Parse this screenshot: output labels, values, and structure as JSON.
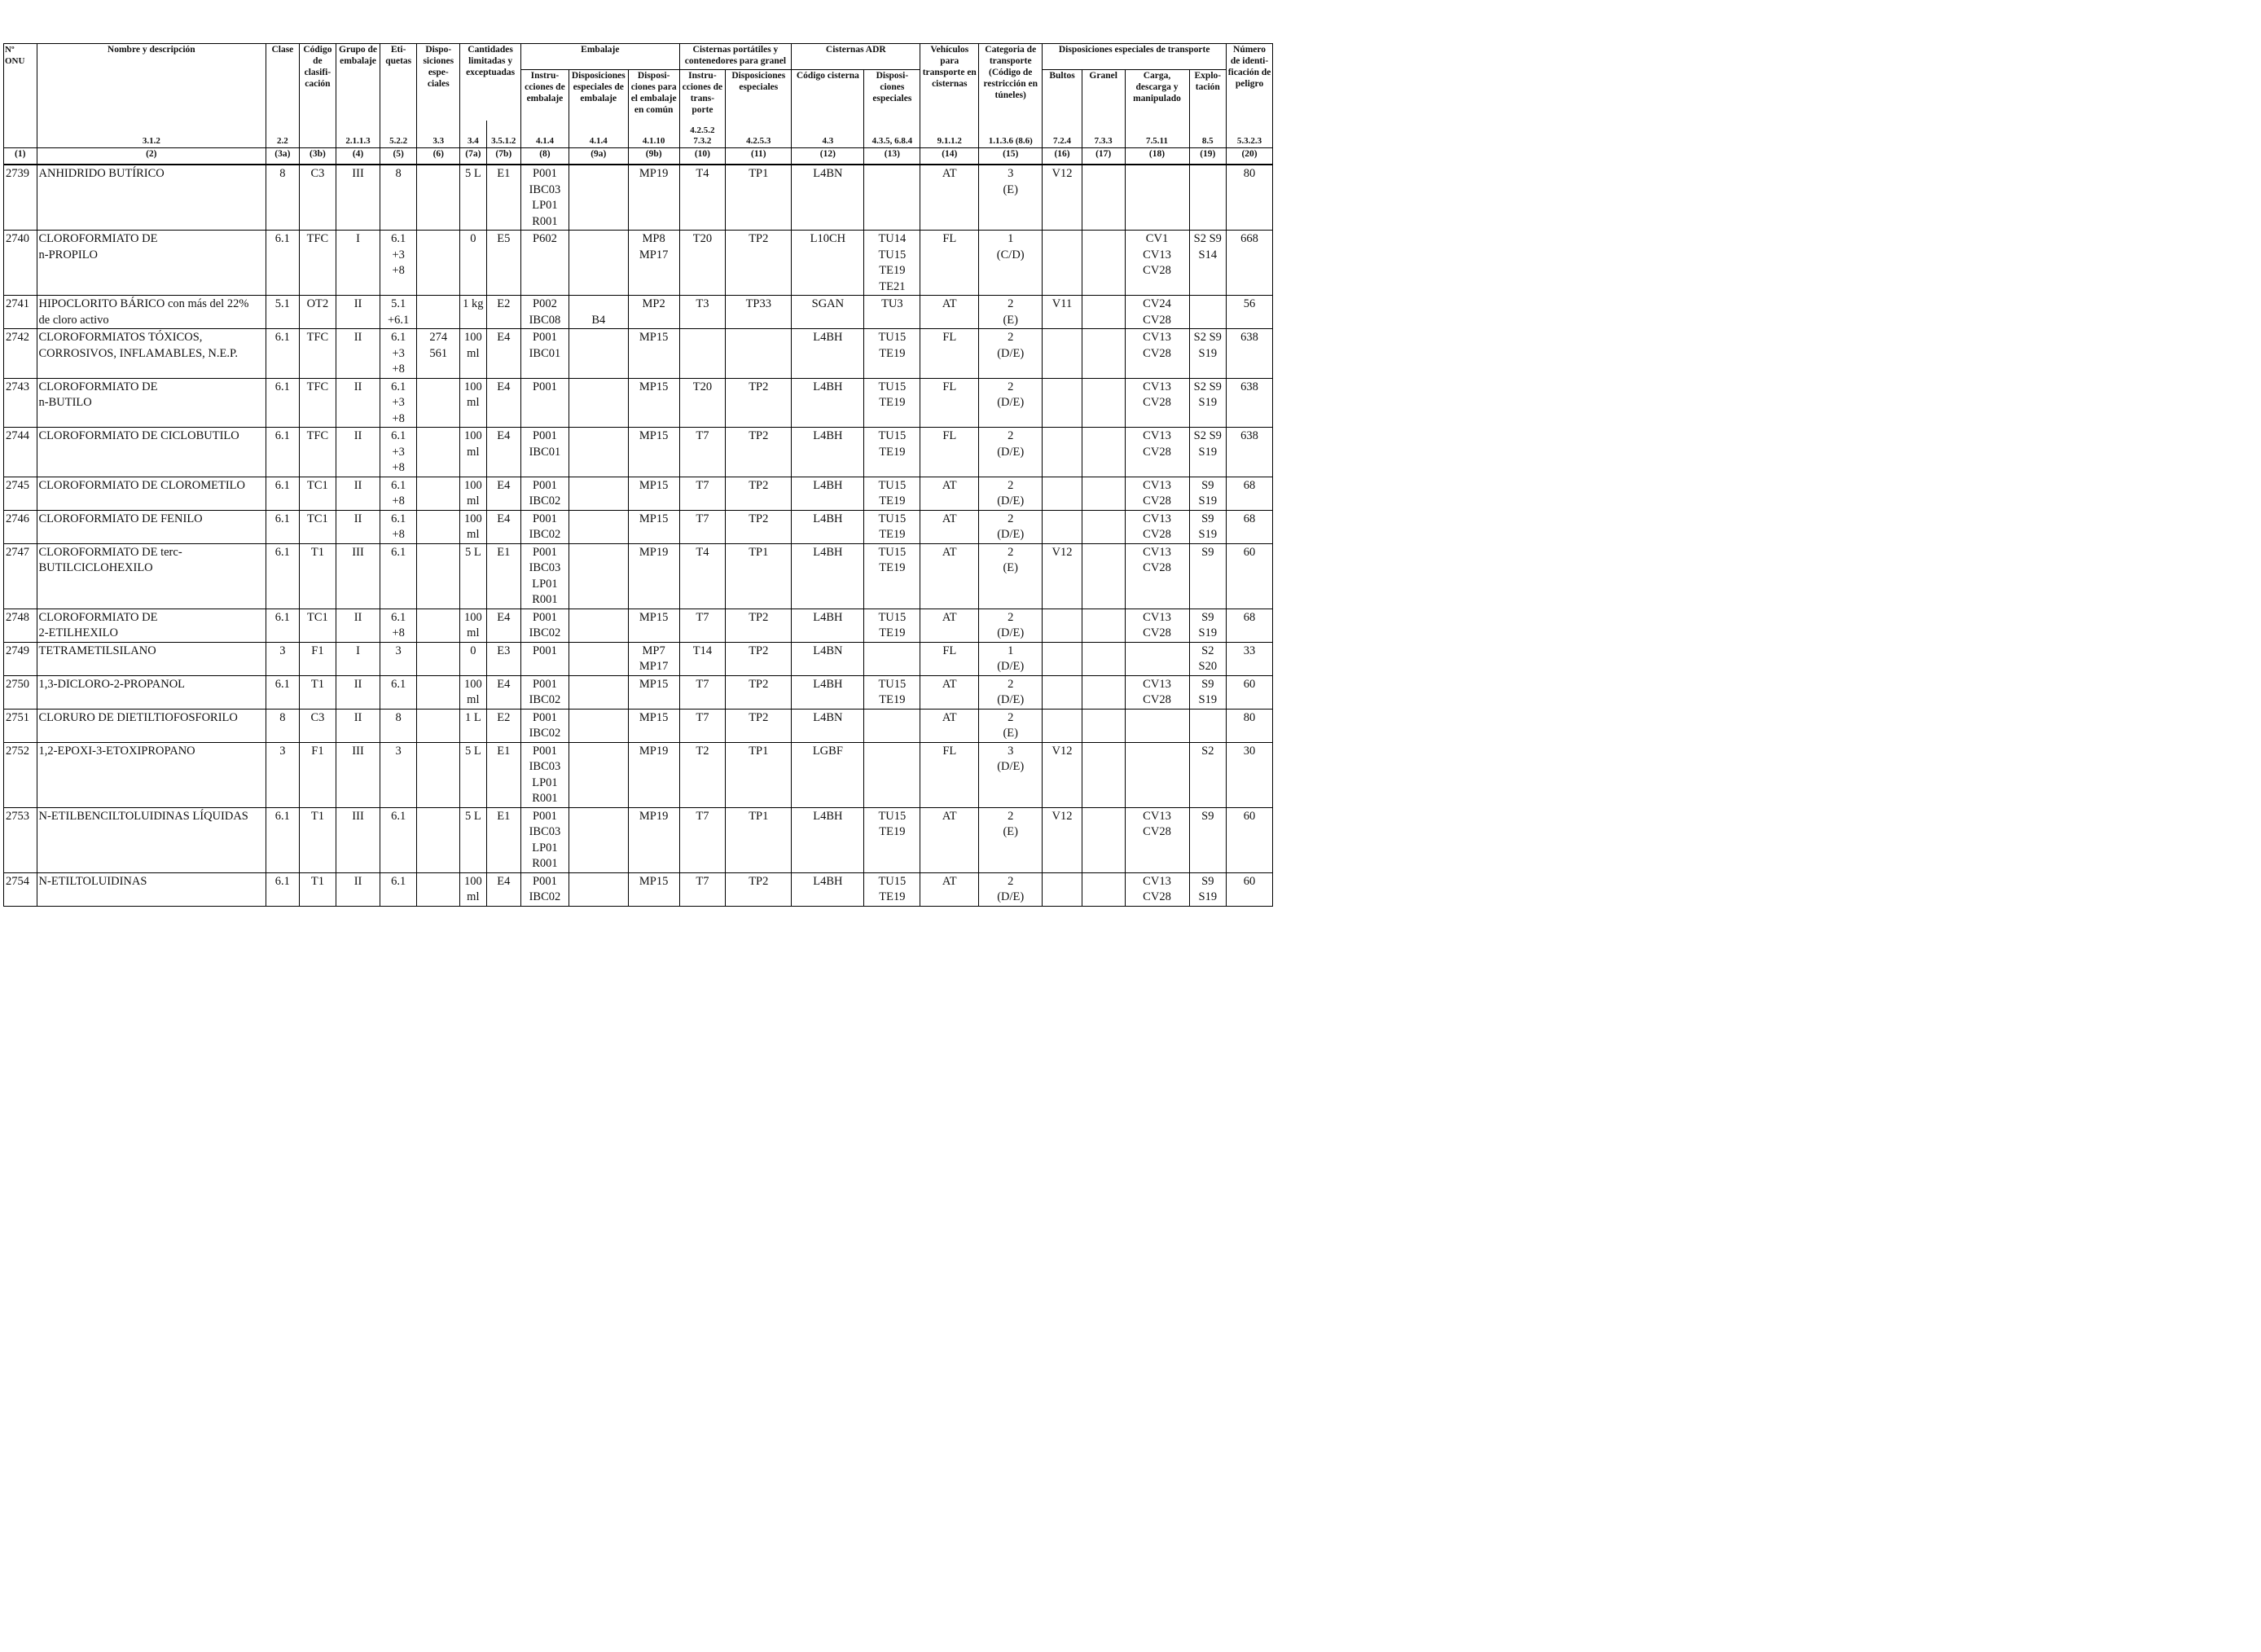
{
  "header": {
    "un": "Nº ONU",
    "name": "Nombre y descripción",
    "name_ref": "3.1.2",
    "clase": "Clase",
    "clase_ref": "2.2",
    "codigo": "Código de clasifi-cación",
    "grupo": "Grupo de embalaje",
    "grupo_ref": "2.1.1.3",
    "etiquetas": "Eti-quetas",
    "etiquetas_ref": "5.2.2",
    "disp": "Dispo-siciones espe-ciales",
    "disp_ref": "3.3",
    "cantidades": "Cantidades limitadas y exceptuadas",
    "cant_ref_a": "3.4",
    "cant_ref_b": "3.5.1.2",
    "embalaje": "Embalaje",
    "emb_instr": "Instru-cciones de embalaje",
    "emb_instr_ref": "4.1.4",
    "emb_disp": "Disposiciones especiales de embalaje",
    "emb_disp_ref": "4.1.4",
    "emb_comun": "Disposi-ciones para el embalaje en común",
    "emb_comun_ref": "4.1.10",
    "cisternas_port": "Cisternas portátiles y contenedores para granel",
    "cp_instr": "Instru-cciones de trans-porte",
    "cp_instr_ref": "4.2.5.2 7.3.2",
    "cp_disp": "Disposiciones especiales",
    "cp_disp_ref": "4.2.5.3",
    "cisternas_adr": "Cisternas ADR",
    "adr_codigo": "Código cisterna",
    "adr_codigo_ref": "4.3",
    "adr_disp": "Disposi-ciones especiales",
    "adr_disp_ref": "4.3.5, 6.8.4",
    "vehiculos": "Vehículos para transporte en cisternas",
    "vehiculos_ref": "9.1.1.2",
    "categoria": "Categoria de transporte (Código de restricción en túneles)",
    "categoria_ref": "1.1.3.6 (8.6)",
    "disp_transporte": "Disposiciones especiales de transporte",
    "dt_bultos": "Bultos",
    "dt_bultos_ref": "7.2.4",
    "dt_granel": "Granel",
    "dt_granel_ref": "7.3.3",
    "dt_carga": "Carga, descarga y manipulado",
    "dt_carga_ref": "7.5.11",
    "dt_explo": "Explo-tación",
    "dt_explo_ref": "8.5",
    "numero": "Número de identi-ficación de peligro",
    "numero_ref": "5.3.2.3"
  },
  "col_numbers": [
    "(1)",
    "(2)",
    "(3a)",
    "(3b)",
    "(4)",
    "(5)",
    "(6)",
    "(7a)",
    "(7b)",
    "(8)",
    "(9a)",
    "(9b)",
    "(10)",
    "(11)",
    "(12)",
    "(13)",
    "(14)",
    "(15)",
    "(16)",
    "(17)",
    "(18)",
    "(19)",
    "(20)"
  ],
  "rows": [
    {
      "un": "2739",
      "name": "ANHIDRIDO BUTÍRICO",
      "clase": "8",
      "codigo": "C3",
      "grupo": "III",
      "etiq": "8",
      "disp": "",
      "cant_a": "5 L",
      "cant_b": "E1",
      "emb_instr": "P001\nIBC03\nLP01\nR001",
      "emb_disp": "",
      "emb_comun": "MP19",
      "cp_instr": "T4",
      "cp_disp": "TP1",
      "adr_cod": "L4BN",
      "adr_disp": "",
      "veh": "AT",
      "cat": "3\n(E)",
      "bultos": "V12",
      "granel": "",
      "carga": "",
      "explo": "",
      "numero": "80"
    },
    {
      "un": "2740",
      "name": "CLOROFORMIATO DE\nn-PROPILO",
      "clase": "6.1",
      "codigo": "TFC",
      "grupo": "I",
      "etiq": "6.1\n+3\n+8",
      "disp": "",
      "cant_a": "0",
      "cant_b": "E5",
      "emb_instr": "P602",
      "emb_disp": "",
      "emb_comun": "MP8\nMP17",
      "cp_instr": "T20",
      "cp_disp": "TP2",
      "adr_cod": "L10CH",
      "adr_disp": "TU14\nTU15\nTE19\nTE21",
      "veh": "FL",
      "cat": "1\n(C/D)",
      "bultos": "",
      "granel": "",
      "carga": "CV1\nCV13\nCV28",
      "explo": "S2 S9\nS14",
      "numero": "668"
    },
    {
      "un": "2741",
      "name": "HIPOCLORITO BÁRICO con más del 22%\nde cloro activo",
      "clase": "5.1",
      "codigo": "OT2",
      "grupo": "II",
      "etiq": "5.1\n+6.1",
      "disp": "",
      "cant_a": "1 kg",
      "cant_b": "E2",
      "emb_instr": "P002\nIBC08",
      "emb_disp": "\nB4",
      "emb_comun": "MP2",
      "cp_instr": "T3",
      "cp_disp": "TP33",
      "adr_cod": "SGAN",
      "adr_disp": "TU3",
      "veh": "AT",
      "cat": "2\n(E)",
      "bultos": "V11",
      "granel": "",
      "carga": "CV24\nCV28",
      "explo": "",
      "numero": "56"
    },
    {
      "un": "2742",
      "name": "CLOROFORMIATOS TÓXICOS,\nCORROSIVOS, INFLAMABLES, N.E.P.",
      "clase": "6.1",
      "codigo": "TFC",
      "grupo": "II",
      "etiq": "6.1\n+3\n+8",
      "disp": "274\n561",
      "cant_a": "100\nml",
      "cant_b": "E4",
      "emb_instr": "P001\nIBC01",
      "emb_disp": "",
      "emb_comun": "MP15",
      "cp_instr": "",
      "cp_disp": "",
      "adr_cod": "L4BH",
      "adr_disp": "TU15\nTE19",
      "veh": "FL",
      "cat": "2\n(D/E)",
      "bultos": "",
      "granel": "",
      "carga": "CV13\nCV28",
      "explo": "S2 S9\nS19",
      "numero": "638"
    },
    {
      "un": "2743",
      "name": "CLOROFORMIATO DE\nn-BUTILO",
      "clase": "6.1",
      "codigo": "TFC",
      "grupo": "II",
      "etiq": "6.1\n+3\n+8",
      "disp": "",
      "cant_a": "100\nml",
      "cant_b": "E4",
      "emb_instr": "P001",
      "emb_disp": "",
      "emb_comun": "MP15",
      "cp_instr": "T20",
      "cp_disp": "TP2",
      "adr_cod": "L4BH",
      "adr_disp": "TU15\nTE19",
      "veh": "FL",
      "cat": "2\n(D/E)",
      "bultos": "",
      "granel": "",
      "carga": "CV13\nCV28",
      "explo": "S2 S9\nS19",
      "numero": "638"
    },
    {
      "un": "2744",
      "name": "CLOROFORMIATO DE CICLOBUTILO",
      "clase": "6.1",
      "codigo": "TFC",
      "grupo": "II",
      "etiq": "6.1\n+3\n+8",
      "disp": "",
      "cant_a": "100\nml",
      "cant_b": "E4",
      "emb_instr": "P001\nIBC01",
      "emb_disp": "",
      "emb_comun": "MP15",
      "cp_instr": "T7",
      "cp_disp": "TP2",
      "adr_cod": "L4BH",
      "adr_disp": "TU15\nTE19",
      "veh": "FL",
      "cat": "2\n(D/E)",
      "bultos": "",
      "granel": "",
      "carga": "CV13\nCV28",
      "explo": "S2 S9\nS19",
      "numero": "638"
    },
    {
      "un": "2745",
      "name": "CLOROFORMIATO DE CLOROMETILO",
      "clase": "6.1",
      "codigo": "TC1",
      "grupo": "II",
      "etiq": "6.1\n+8",
      "disp": "",
      "cant_a": "100\nml",
      "cant_b": "E4",
      "emb_instr": "P001\nIBC02",
      "emb_disp": "",
      "emb_comun": "MP15",
      "cp_instr": "T7",
      "cp_disp": "TP2",
      "adr_cod": "L4BH",
      "adr_disp": "TU15\nTE19",
      "veh": "AT",
      "cat": "2\n(D/E)",
      "bultos": "",
      "granel": "",
      "carga": "CV13\nCV28",
      "explo": "S9\nS19",
      "numero": "68"
    },
    {
      "un": "2746",
      "name": "CLOROFORMIATO DE FENILO",
      "clase": "6.1",
      "codigo": "TC1",
      "grupo": "II",
      "etiq": "6.1\n+8",
      "disp": "",
      "cant_a": "100\nml",
      "cant_b": "E4",
      "emb_instr": "P001\nIBC02",
      "emb_disp": "",
      "emb_comun": "MP15",
      "cp_instr": "T7",
      "cp_disp": "TP2",
      "adr_cod": "L4BH",
      "adr_disp": "TU15\nTE19",
      "veh": "AT",
      "cat": "2\n(D/E)",
      "bultos": "",
      "granel": "",
      "carga": "CV13\nCV28",
      "explo": "S9\nS19",
      "numero": "68"
    },
    {
      "un": "2747",
      "name": "CLOROFORMIATO DE terc-\nBUTILCICLOHEXILO",
      "clase": "6.1",
      "codigo": "T1",
      "grupo": "III",
      "etiq": "6.1",
      "disp": "",
      "cant_a": "5 L",
      "cant_b": "E1",
      "emb_instr": "P001\nIBC03\nLP01\nR001",
      "emb_disp": "",
      "emb_comun": "MP19",
      "cp_instr": "T4",
      "cp_disp": "TP1",
      "adr_cod": "L4BH",
      "adr_disp": "TU15\nTE19",
      "veh": "AT",
      "cat": "2\n(E)",
      "bultos": "V12",
      "granel": "",
      "carga": "CV13\nCV28",
      "explo": "S9",
      "numero": "60"
    },
    {
      "un": "2748",
      "name": "CLOROFORMIATO DE\n2-ETILHEXILO",
      "clase": "6.1",
      "codigo": "TC1",
      "grupo": "II",
      "etiq": "6.1\n+8",
      "disp": "",
      "cant_a": "100\nml",
      "cant_b": "E4",
      "emb_instr": "P001\nIBC02",
      "emb_disp": "",
      "emb_comun": "MP15",
      "cp_instr": "T7",
      "cp_disp": "TP2",
      "adr_cod": "L4BH",
      "adr_disp": "TU15\nTE19",
      "veh": "AT",
      "cat": "2\n(D/E)",
      "bultos": "",
      "granel": "",
      "carga": "CV13\nCV28",
      "explo": "S9\nS19",
      "numero": "68"
    },
    {
      "un": "2749",
      "name": "TETRAMETILSILANO",
      "clase": "3",
      "codigo": "F1",
      "grupo": "I",
      "etiq": "3",
      "disp": "",
      "cant_a": "0",
      "cant_b": "E3",
      "emb_instr": "P001",
      "emb_disp": "",
      "emb_comun": "MP7\nMP17",
      "cp_instr": "T14",
      "cp_disp": "TP2",
      "adr_cod": "L4BN",
      "adr_disp": "",
      "veh": "FL",
      "cat": "1\n(D/E)",
      "bultos": "",
      "granel": "",
      "carga": "",
      "explo": "S2\nS20",
      "numero": "33"
    },
    {
      "un": "2750",
      "name": "1,3-DICLORO-2-PROPANOL",
      "clase": "6.1",
      "codigo": "T1",
      "grupo": "II",
      "etiq": "6.1",
      "disp": "",
      "cant_a": "100\nml",
      "cant_b": "E4",
      "emb_instr": "P001\nIBC02",
      "emb_disp": "",
      "emb_comun": "MP15",
      "cp_instr": "T7",
      "cp_disp": "TP2",
      "adr_cod": "L4BH",
      "adr_disp": "TU15\nTE19",
      "veh": "AT",
      "cat": "2\n(D/E)",
      "bultos": "",
      "granel": "",
      "carga": "CV13\nCV28",
      "explo": "S9\nS19",
      "numero": "60"
    },
    {
      "un": "2751",
      "name": "CLORURO DE DIETILTIOFOSFORILO",
      "clase": "8",
      "codigo": "C3",
      "grupo": "II",
      "etiq": "8",
      "disp": "",
      "cant_a": "1 L",
      "cant_b": "E2",
      "emb_instr": "P001\nIBC02",
      "emb_disp": "",
      "emb_comun": "MP15",
      "cp_instr": "T7",
      "cp_disp": "TP2",
      "adr_cod": "L4BN",
      "adr_disp": "",
      "veh": "AT",
      "cat": "2\n(E)",
      "bultos": "",
      "granel": "",
      "carga": "",
      "explo": "",
      "numero": "80"
    },
    {
      "un": "2752",
      "name": "1,2-EPOXI-3-ETOXIPROPANO",
      "clase": "3",
      "codigo": "F1",
      "grupo": "III",
      "etiq": "3",
      "disp": "",
      "cant_a": "5 L",
      "cant_b": "E1",
      "emb_instr": "P001\nIBC03\nLP01\nR001",
      "emb_disp": "",
      "emb_comun": "MP19",
      "cp_instr": "T2",
      "cp_disp": "TP1",
      "adr_cod": "LGBF",
      "adr_disp": "",
      "veh": "FL",
      "cat": "3\n(D/E)",
      "bultos": "V12",
      "granel": "",
      "carga": "",
      "explo": "S2",
      "numero": "30"
    },
    {
      "un": "2753",
      "name": "N-ETILBENCILTOLUIDINAS LÍQUIDAS",
      "clase": "6.1",
      "codigo": "T1",
      "grupo": "III",
      "etiq": "6.1",
      "disp": "",
      "cant_a": "5 L",
      "cant_b": "E1",
      "emb_instr": "P001\nIBC03\nLP01\nR001",
      "emb_disp": "",
      "emb_comun": "MP19",
      "cp_instr": "T7",
      "cp_disp": "TP1",
      "adr_cod": "L4BH",
      "adr_disp": "TU15\nTE19",
      "veh": "AT",
      "cat": "2\n(E)",
      "bultos": "V12",
      "granel": "",
      "carga": "CV13\nCV28",
      "explo": "S9",
      "numero": "60"
    },
    {
      "un": "2754",
      "name": "N-ETILTOLUIDINAS",
      "clase": "6.1",
      "codigo": "T1",
      "grupo": "II",
      "etiq": "6.1",
      "disp": "",
      "cant_a": "100\nml",
      "cant_b": "E4",
      "emb_instr": "P001\nIBC02",
      "emb_disp": "",
      "emb_comun": "MP15",
      "cp_instr": "T7",
      "cp_disp": "TP2",
      "adr_cod": "L4BH",
      "adr_disp": "TU15\nTE19",
      "veh": "AT",
      "cat": "2\n(D/E)",
      "bultos": "",
      "granel": "",
      "carga": "CV13\nCV28",
      "explo": "S9\nS19",
      "numero": "60"
    }
  ]
}
